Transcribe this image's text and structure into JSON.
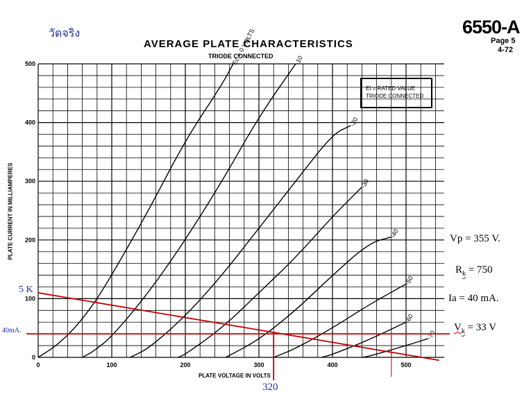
{
  "header": {
    "thai_note": "วัดจริง",
    "tube_type": "6550-A",
    "page": "Page 5",
    "date_code": "4-72"
  },
  "legend": {
    "line1": "Ef = RATED VALUE",
    "line2": "TRIODE CONNECTED"
  },
  "annotations": {
    "vp": "Vp = 355 V.",
    "rk_prefix": "R",
    "rk_sub": "k",
    "rk_suffix": " = 750",
    "ia": "Ia = 40 mA.",
    "vk_prefix": "V",
    "vk_sub": "k",
    "vk_suffix": " = 33 V",
    "load_label": "5 K",
    "current_marker": "40mA.",
    "operating_voltage": "320"
  },
  "colors": {
    "grid": "#000000",
    "curves": "#000000",
    "overlay": "#c00000",
    "note": "#1f2f9a"
  },
  "chart_data": {
    "type": "line",
    "title": "AVERAGE PLATE CHARACTERISTICS",
    "subtitle": "TRIODE CONNECTED",
    "xlabel": "PLATE VOLTAGE IN VOLTS",
    "ylabel": "PLATE CURRENT IN MILLIAMPERES",
    "xlim": [
      0,
      540
    ],
    "ylim": [
      0,
      500
    ],
    "x_ticks": [
      0,
      100,
      200,
      300,
      400,
      500
    ],
    "y_ticks": [
      0,
      100,
      200,
      300,
      400,
      500
    ],
    "grid": true,
    "series": [
      {
        "name": "Ec = 0 VOLTS",
        "label": "Ec = 0 VOLTS",
        "points": [
          [
            0,
            0
          ],
          [
            25,
            20
          ],
          [
            50,
            50
          ],
          [
            75,
            90
          ],
          [
            100,
            140
          ],
          [
            150,
            250
          ],
          [
            200,
            370
          ],
          [
            250,
            465
          ],
          [
            265,
            500
          ]
        ]
      },
      {
        "name": "-10",
        "label": "-10",
        "points": [
          [
            60,
            0
          ],
          [
            75,
            10
          ],
          [
            100,
            35
          ],
          [
            150,
            110
          ],
          [
            200,
            200
          ],
          [
            250,
            300
          ],
          [
            300,
            410
          ],
          [
            350,
            500
          ]
        ]
      },
      {
        "name": "-20",
        "label": "-20",
        "points": [
          [
            125,
            0
          ],
          [
            150,
            15
          ],
          [
            200,
            70
          ],
          [
            250,
            140
          ],
          [
            300,
            220
          ],
          [
            350,
            300
          ],
          [
            400,
            380
          ],
          [
            425,
            395
          ]
        ]
      },
      {
        "name": "-30",
        "label": "-30",
        "points": [
          [
            190,
            0
          ],
          [
            200,
            5
          ],
          [
            250,
            50
          ],
          [
            300,
            110
          ],
          [
            350,
            170
          ],
          [
            400,
            240
          ],
          [
            440,
            290
          ]
        ]
      },
      {
        "name": "-40",
        "label": "-40",
        "points": [
          [
            255,
            0
          ],
          [
            300,
            30
          ],
          [
            350,
            80
          ],
          [
            400,
            140
          ],
          [
            450,
            195
          ],
          [
            480,
            205
          ]
        ]
      },
      {
        "name": "-50",
        "label": "-50",
        "points": [
          [
            320,
            0
          ],
          [
            350,
            15
          ],
          [
            400,
            50
          ],
          [
            450,
            90
          ],
          [
            500,
            125
          ]
        ]
      },
      {
        "name": "-60",
        "label": "-60",
        "points": [
          [
            385,
            0
          ],
          [
            400,
            5
          ],
          [
            450,
            30
          ],
          [
            500,
            60
          ]
        ]
      },
      {
        "name": "-70",
        "label": "-70",
        "points": [
          [
            440,
            0
          ],
          [
            450,
            2
          ],
          [
            500,
            20
          ],
          [
            530,
            32
          ]
        ]
      }
    ],
    "overlays": {
      "load_line": [
        [
          0,
          110
        ],
        [
          545,
          -5
        ]
      ],
      "ia_line_ma": 40,
      "operating_point_v": 320,
      "second_marker_v": 480
    }
  }
}
